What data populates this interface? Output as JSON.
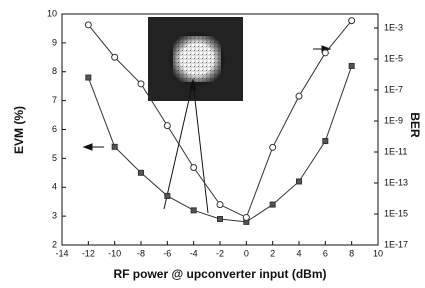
{
  "chart_data": {
    "type": "line",
    "x_label": "RF power @ upconverter input (dBm)",
    "y_label": "EVM (%)",
    "y2_label": "BER",
    "x": [
      -12,
      -10,
      -8,
      -6,
      -4,
      -2,
      0,
      2,
      4,
      6,
      8
    ],
    "series": [
      {
        "color": "#333333",
        "marker": "square",
        "values": [
          7.8,
          5.4,
          4.5,
          3.7,
          3.2,
          2.9,
          2.8,
          3.4,
          4.2,
          5.6,
          8.2
        ]
      },
      {
        "color": "#333333",
        "marker": "circle",
        "axis": "y2",
        "values": [
          0.0016,
          1.3e-05,
          2.5e-07,
          5e-10,
          1e-12,
          4e-15,
          6e-16,
          2e-11,
          4e-08,
          2.5e-05,
          0.003
        ]
      }
    ],
    "xlim": [
      -14,
      10
    ],
    "xticks": [
      -14,
      -12,
      -10,
      -8,
      -6,
      -4,
      -2,
      0,
      2,
      4,
      6,
      8,
      10
    ],
    "ylim": [
      2,
      10
    ],
    "yticks": [
      2,
      3,
      4,
      5,
      6,
      7,
      8,
      9,
      10
    ],
    "y2_log": true,
    "y2lim": [
      1e-17,
      0.008
    ],
    "y2ticks": [
      {
        "value": 0.001,
        "label": "1E-3"
      },
      {
        "value": 1e-05,
        "label": "1E-5"
      },
      {
        "value": 1e-07,
        "label": "1E-7"
      },
      {
        "value": 1e-09,
        "label": "1E-9"
      },
      {
        "value": 1e-11,
        "label": "1E-11"
      },
      {
        "value": 1e-13,
        "label": "1E-13"
      },
      {
        "value": 1e-15,
        "label": "1E-15"
      },
      {
        "value": 1e-17,
        "label": "1E-17"
      }
    ]
  }
}
